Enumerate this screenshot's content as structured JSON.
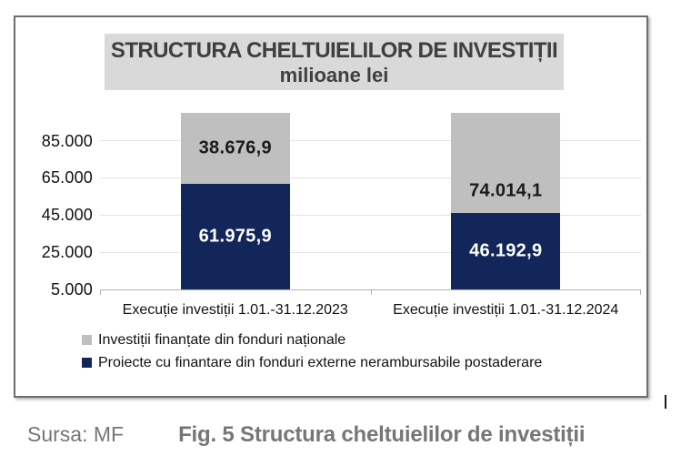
{
  "caption": {
    "source_label": "Sursa: MF",
    "fig_label": "Fig. 5 Structura cheltuielilor de investiții"
  },
  "chart_data": {
    "type": "bar",
    "stacked": true,
    "title": "STRUCTURA CHELTUIELILOR DE INVESTIȚII",
    "subtitle": "milioane lei",
    "categories": [
      "Execuție investiții  1.01.-31.12.2023",
      "Execuție investiții  1.01.-31.12.2024"
    ],
    "series": [
      {
        "name": "Proiecte cu finantare din fonduri externe nerambursabile postaderare",
        "color": "#12265a",
        "values": [
          61975.9,
          46192.9
        ],
        "labels": [
          "61.975,9",
          "46.192,9"
        ],
        "label_anchor": [
          "middle",
          "middle"
        ]
      },
      {
        "name": "Investiții finanțate din fonduri naționale",
        "color": "#bfbfbf",
        "values": [
          38676.9,
          74014.1
        ],
        "labels": [
          "38.676,9",
          "74.014,1"
        ],
        "label_anchor": [
          "middle",
          "above-base"
        ]
      }
    ],
    "y_ticks": [
      "85.000",
      "65.000",
      "45.000",
      "25.000",
      "5.000"
    ],
    "y_tick_values": [
      85000,
      65000,
      45000,
      25000,
      5000
    ],
    "y_gridline_values": [
      25000,
      45000,
      65000,
      85000
    ],
    "ylim": [
      5000,
      100000
    ],
    "grid": true,
    "legend_position": "bottom-left",
    "colors": {
      "banner_bg": "#d9d9d9",
      "title_text": "#3f3f3f",
      "caption_text": "#767676"
    }
  }
}
